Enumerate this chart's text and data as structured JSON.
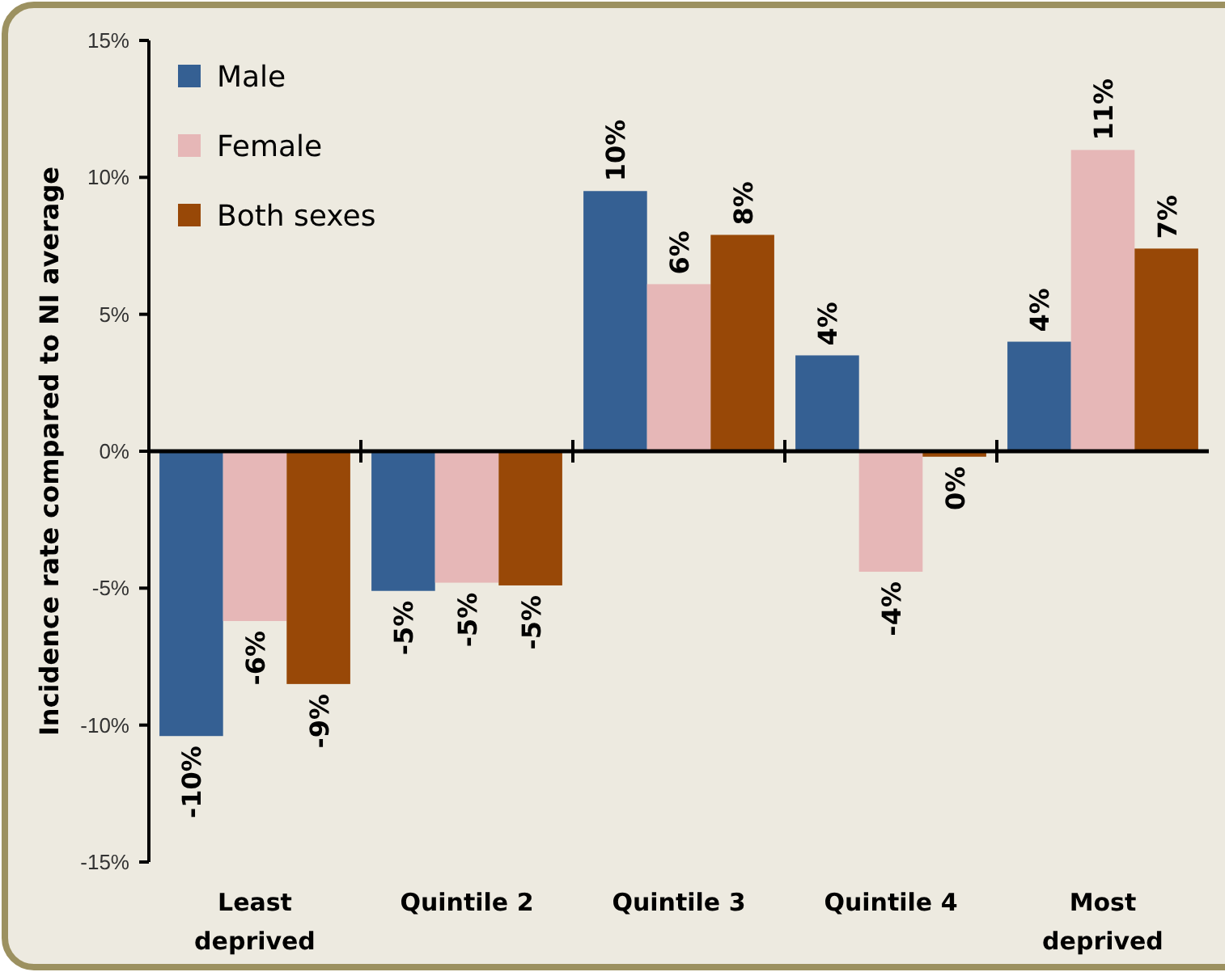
{
  "chart_data": {
    "type": "bar",
    "ylabel": "Incidence rate compared to NI average",
    "categories": [
      "Least deprived",
      "Quintile 2",
      "Quintile 3",
      "Quintile 4",
      "Most deprived"
    ],
    "series": [
      {
        "name": "Male",
        "color": "#356093",
        "values": [
          -10.4,
          -5.1,
          9.5,
          3.5,
          4.0
        ],
        "value_labels": [
          "-10%",
          "-5%",
          "10%",
          "4%",
          "4%"
        ]
      },
      {
        "name": "Female",
        "color": "#e6b7b7",
        "values": [
          -6.2,
          -4.8,
          6.1,
          -4.4,
          11.0
        ],
        "value_labels": [
          "-6%",
          "-5%",
          "6%",
          "-4%",
          "11%"
        ]
      },
      {
        "name": "Both sexes",
        "color": "#984807",
        "values": [
          -8.5,
          -4.9,
          7.9,
          -0.2,
          7.4
        ],
        "value_labels": [
          "-9%",
          "-5%",
          "8%",
          "0%",
          "7%"
        ]
      }
    ],
    "ylim": [
      -15,
      15
    ],
    "yticks": [
      {
        "value": -15,
        "label": "-15%"
      },
      {
        "value": -10,
        "label": "-10%"
      },
      {
        "value": -5,
        "label": "-5%"
      },
      {
        "value": 0,
        "label": "0%"
      },
      {
        "value": 5,
        "label": "5%"
      },
      {
        "value": 10,
        "label": "10%"
      },
      {
        "value": 15,
        "label": "15%"
      }
    ],
    "legend": "top left"
  }
}
